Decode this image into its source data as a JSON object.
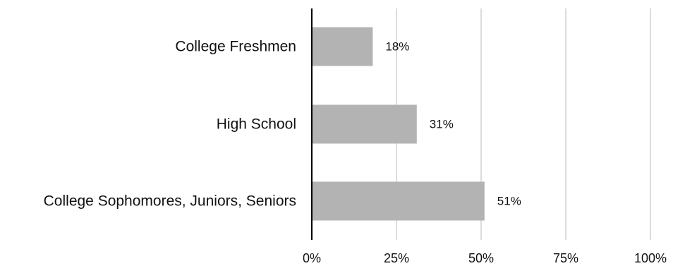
{
  "chart_data": {
    "type": "bar",
    "orientation": "horizontal",
    "categories": [
      "College Freshmen",
      "High School",
      "College Sophomores, Juniors, Seniors"
    ],
    "values": [
      18,
      31,
      51
    ],
    "data_labels": [
      "18%",
      "31%",
      "51%"
    ],
    "xlim": [
      0,
      100
    ],
    "x_ticks": [
      0,
      25,
      50,
      75,
      100
    ],
    "x_tick_labels": [
      "0%",
      "25%",
      "50%",
      "75%",
      "100%"
    ],
    "grid": true,
    "legend": "none",
    "title": "",
    "xlabel": "",
    "ylabel": "",
    "colors": {
      "bar": "#b3b3b3",
      "grid": "#dcdcdc",
      "axis": "#000000",
      "text": "#111111"
    }
  }
}
